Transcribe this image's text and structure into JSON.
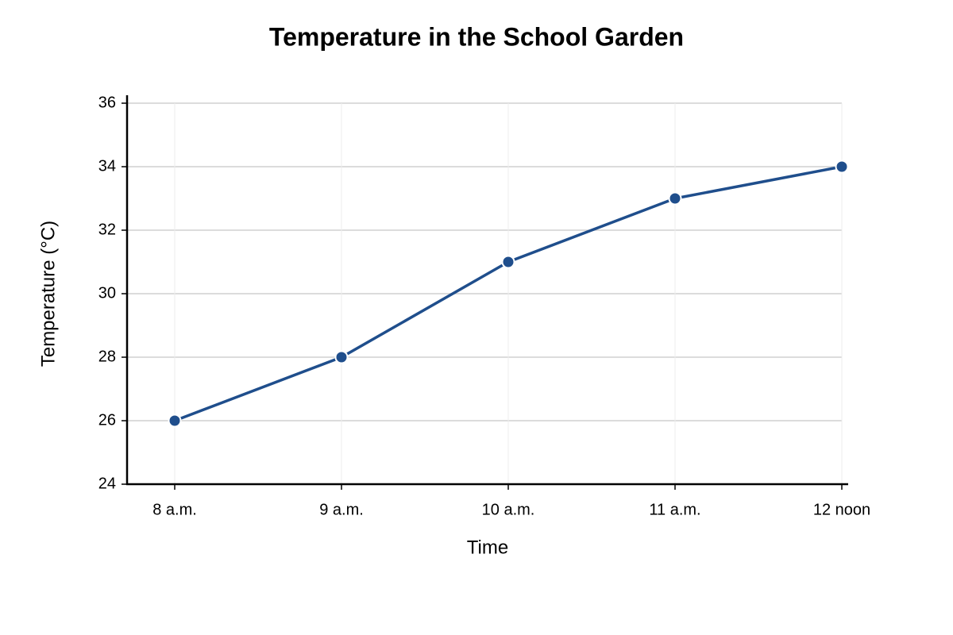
{
  "chart_data": {
    "type": "line",
    "title": "Temperature in the School Garden",
    "x_label": "Time",
    "y_label": "Temperature (°C)",
    "categories": [
      "8 a.m.",
      "9 a.m.",
      "10 a.m.",
      "11 a.m.",
      "12 noon"
    ],
    "series": [
      {
        "name": "Temperature",
        "color": "#1f4e8c",
        "values": [
          26,
          28,
          31,
          33,
          34
        ]
      }
    ],
    "ylim": [
      24,
      36
    ],
    "yticks": [
      24,
      26,
      28,
      30,
      32,
      34,
      36
    ],
    "grid": true
  }
}
